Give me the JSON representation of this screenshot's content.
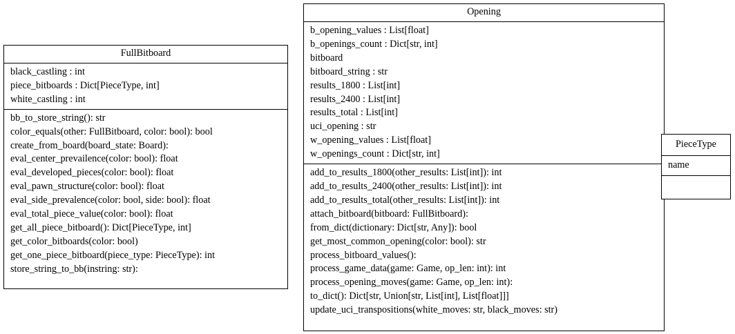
{
  "classes": [
    {
      "name": "FullBitboard",
      "attributes": [
        "black_castling : int",
        "piece_bitboards : Dict[PieceType, int]",
        "white_castling : int"
      ],
      "methods": [
        "bb_to_store_string(): str",
        "color_equals(other: FullBitboard, color: bool): bool",
        "create_from_board(board_state: Board):",
        "eval_center_prevailence(color: bool): float",
        "eval_developed_pieces(color: bool): float",
        "eval_pawn_structure(color: bool): float",
        "eval_side_prevalence(color: bool, side: bool): float",
        "eval_total_piece_value(color: bool): float",
        "get_all_piece_bitboard(): Dict[PieceType, int]",
        "get_color_bitboards(color: bool)",
        "get_one_piece_bitboard(piece_type: PieceType): int",
        "store_string_to_bb(instring: str):"
      ]
    },
    {
      "name": "Opening",
      "attributes": [
        "b_opening_values : List[float]",
        "b_openings_count : Dict[str, int]",
        "bitboard",
        "bitboard_string : str",
        "results_1800 : List[int]",
        "results_2400 : List[int]",
        "results_total : List[int]",
        "uci_opening : str",
        "w_opening_values : List[float]",
        "w_openings_count : Dict[str, int]"
      ],
      "methods": [
        "add_to_results_1800(other_results: List[int]): int",
        "add_to_results_2400(other_results: List[int]): int",
        "add_to_results_total(other_results: List[int]): int",
        "attach_bitboard(bitboard: FullBitboard):",
        "from_dict(dictionary: Dict[str, Any]): bool",
        "get_most_common_opening(color: bool): str",
        "process_bitboard_values():",
        "process_game_data(game: Game, op_len: int): int",
        "process_opening_moves(game: Game, op_len: int):",
        "to_dict(): Dict[str, Union[str, List[int], List[float]]]",
        "update_uci_transpositions(white_moves: str, black_moves: str)"
      ]
    },
    {
      "name": "PieceType",
      "attributes": [
        "name"
      ],
      "methods": []
    }
  ]
}
